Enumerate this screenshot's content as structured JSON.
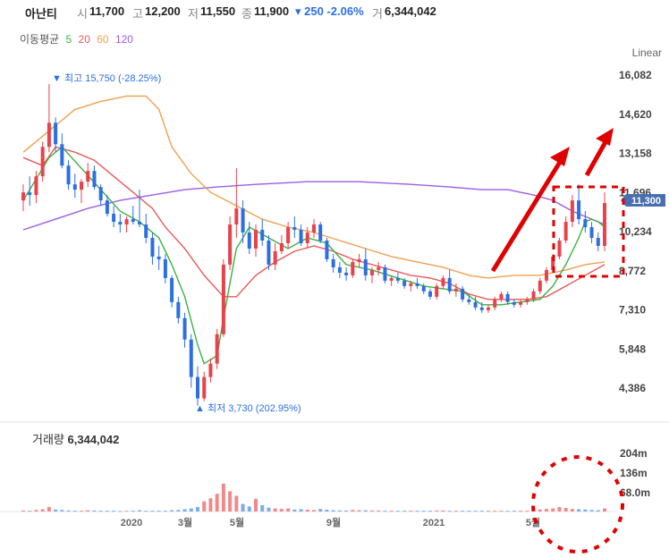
{
  "header": {
    "name": "아난티",
    "open_label": "시",
    "open": "11,700",
    "high_label": "고",
    "high": "12,200",
    "low_label": "저",
    "low": "11,550",
    "close_label": "종",
    "close": "11,900",
    "change": "▾ 250 -2.06%",
    "volume_label": "거",
    "volume": "6,344,042"
  },
  "ma_legend": {
    "label": "이동평균",
    "periods": [
      {
        "text": "5",
        "color": "#3cb043"
      },
      {
        "text": "20",
        "color": "#e85a5a"
      },
      {
        "text": "60",
        "color": "#f0a050"
      },
      {
        "text": "120",
        "color": "#9a5de6"
      }
    ]
  },
  "scale_label": "Linear",
  "annotations": {
    "high": "▼ 최고 15,750 (-28.25%)",
    "low": "▲ 최저 3,730 (202.95%)",
    "current_price": "11,300"
  },
  "volume_panel": {
    "label": "거래량",
    "value": "6,344,042"
  },
  "colors": {
    "up": "#e8424a",
    "down": "#2c6fe0",
    "highlight": "#e00000",
    "ma5": "#3cb043",
    "ma20": "#e85a5a",
    "ma60": "#f0a050",
    "ma120": "#9a5de6"
  },
  "chart_data": {
    "type": "candlestick",
    "y_ticks": [
      "16,082",
      "14,620",
      "13,158",
      "11,696",
      "10,234",
      "8,772",
      "7,310",
      "5,848",
      "4,386"
    ],
    "ylim": [
      3000,
      16500
    ],
    "x_ticks": [
      "2020",
      "3월",
      "5월",
      "9월",
      "2021",
      "5월"
    ],
    "volume_ticks": [
      "204m",
      "136m",
      "68.0m"
    ],
    "volume_ylim": [
      0,
      240
    ],
    "candles": [
      [
        11400,
        12000,
        11000,
        11700
      ],
      [
        11700,
        12300,
        11200,
        11600
      ],
      [
        11600,
        12500,
        11300,
        12300
      ],
      [
        12300,
        13600,
        12100,
        13400
      ],
      [
        13400,
        15750,
        13200,
        14300
      ],
      [
        14300,
        14500,
        13200,
        13500
      ],
      [
        13500,
        13900,
        12600,
        12700
      ],
      [
        12700,
        12900,
        11800,
        12000
      ],
      [
        12000,
        12400,
        11500,
        11800
      ],
      [
        11800,
        12200,
        11300,
        12100
      ],
      [
        12100,
        12800,
        11900,
        12500
      ],
      [
        12500,
        12700,
        11800,
        11900
      ],
      [
        11900,
        12000,
        11200,
        11400
      ],
      [
        11400,
        11600,
        10800,
        10900
      ],
      [
        10900,
        11200,
        10400,
        10600
      ],
      [
        10600,
        10900,
        10200,
        10500
      ],
      [
        10500,
        10800,
        10200,
        10700
      ],
      [
        10700,
        11200,
        10500,
        10600
      ],
      [
        10600,
        11800,
        10400,
        10500
      ],
      [
        10500,
        10900,
        9800,
        10000
      ],
      [
        10000,
        10200,
        9000,
        9300
      ],
      [
        9300,
        9700,
        8800,
        9200
      ],
      [
        9200,
        9400,
        8300,
        8500
      ],
      [
        8500,
        8600,
        7400,
        7600
      ],
      [
        7600,
        7800,
        6800,
        7000
      ],
      [
        7000,
        7200,
        5900,
        6200
      ],
      [
        6200,
        6400,
        4400,
        4800
      ],
      [
        4800,
        5200,
        3730,
        4000
      ],
      [
        4000,
        5000,
        3900,
        4800
      ],
      [
        4800,
        5500,
        4600,
        5300
      ],
      [
        5300,
        6600,
        5100,
        6400
      ],
      [
        6400,
        9200,
        6300,
        9000
      ],
      [
        9000,
        10800,
        8800,
        10500
      ],
      [
        10500,
        12600,
        10000,
        11100
      ],
      [
        11100,
        11400,
        9800,
        10200
      ],
      [
        10200,
        10600,
        9400,
        9600
      ],
      [
        9600,
        10500,
        9300,
        10300
      ],
      [
        10300,
        10700,
        9700,
        9900
      ],
      [
        9900,
        10100,
        8800,
        9000
      ],
      [
        9000,
        9800,
        8800,
        9500
      ],
      [
        9500,
        10100,
        9400,
        9800
      ],
      [
        9800,
        10600,
        9600,
        10400
      ],
      [
        10400,
        10800,
        10000,
        10300
      ],
      [
        10300,
        10500,
        9700,
        9800
      ],
      [
        9800,
        10400,
        9600,
        10200
      ],
      [
        10200,
        10700,
        10000,
        10500
      ],
      [
        10500,
        10600,
        9800,
        9900
      ],
      [
        9900,
        10000,
        9100,
        9200
      ],
      [
        9200,
        9400,
        8700,
        8900
      ],
      [
        8900,
        9100,
        8500,
        8700
      ],
      [
        8700,
        8900,
        8400,
        8600
      ],
      [
        8600,
        9200,
        8500,
        9100
      ],
      [
        9100,
        9400,
        8900,
        9200
      ],
      [
        9200,
        9600,
        8400,
        8600
      ],
      [
        8600,
        8900,
        8300,
        8800
      ],
      [
        8800,
        9100,
        8600,
        8900
      ],
      [
        8900,
        9000,
        8300,
        8400
      ],
      [
        8400,
        8600,
        8200,
        8500
      ],
      [
        8500,
        8700,
        8300,
        8400
      ],
      [
        8400,
        8500,
        8100,
        8200
      ],
      [
        8200,
        8400,
        8000,
        8300
      ],
      [
        8300,
        8500,
        8100,
        8200
      ],
      [
        8200,
        8300,
        7900,
        8000
      ],
      [
        8000,
        8100,
        7700,
        7800
      ],
      [
        7800,
        8300,
        7700,
        8200
      ],
      [
        8200,
        8600,
        8100,
        8500
      ],
      [
        8500,
        8800,
        7900,
        8000
      ],
      [
        8000,
        8300,
        7800,
        8100
      ],
      [
        8100,
        8200,
        7600,
        7700
      ],
      [
        7700,
        7900,
        7500,
        7600
      ],
      [
        7600,
        7800,
        7300,
        7400
      ],
      [
        7400,
        7600,
        7200,
        7300
      ],
      [
        7300,
        7500,
        7200,
        7400
      ],
      [
        7400,
        7800,
        7300,
        7700
      ],
      [
        7700,
        8000,
        7600,
        7900
      ],
      [
        7900,
        8000,
        7500,
        7600
      ],
      [
        7600,
        7700,
        7400,
        7500
      ],
      [
        7500,
        7700,
        7400,
        7600
      ],
      [
        7600,
        7800,
        7500,
        7700
      ],
      [
        7700,
        8100,
        7600,
        8000
      ],
      [
        8000,
        8500,
        7900,
        8400
      ],
      [
        8400,
        8900,
        8300,
        8800
      ],
      [
        8800,
        9400,
        8700,
        9300
      ],
      [
        9300,
        10000,
        9200,
        9900
      ],
      [
        9900,
        10800,
        9800,
        10600
      ],
      [
        10600,
        11600,
        10400,
        11400
      ],
      [
        11400,
        12000,
        10500,
        10700
      ],
      [
        10700,
        11000,
        10200,
        10400
      ],
      [
        10400,
        10600,
        9800,
        10000
      ],
      [
        10000,
        10200,
        9500,
        9700
      ],
      [
        9700,
        11700,
        9500,
        11300
      ]
    ],
    "volumes": [
      4,
      3,
      6,
      9,
      18,
      8,
      6,
      4,
      3,
      3,
      5,
      4,
      3,
      3,
      3,
      2,
      3,
      3,
      5,
      3,
      3,
      3,
      3,
      5,
      6,
      9,
      12,
      18,
      40,
      52,
      70,
      110,
      80,
      62,
      30,
      20,
      50,
      25,
      15,
      12,
      10,
      12,
      8,
      9,
      7,
      6,
      10,
      7,
      5,
      4,
      4,
      6,
      5,
      5,
      4,
      4,
      3,
      3,
      3,
      3,
      3,
      3,
      3,
      3,
      4,
      4,
      3,
      3,
      3,
      3,
      3,
      3,
      3,
      3,
      3,
      3,
      3,
      3,
      3,
      3,
      8,
      10,
      12,
      18,
      14,
      10,
      9,
      8,
      6,
      5,
      12
    ],
    "ma5": [
      [
        0,
        11400
      ],
      [
        4,
        13000
      ],
      [
        6,
        13400
      ],
      [
        9,
        12600
      ],
      [
        12,
        11800
      ],
      [
        15,
        11000
      ],
      [
        18,
        10600
      ],
      [
        21,
        10000
      ],
      [
        23,
        9000
      ],
      [
        25,
        7800
      ],
      [
        27,
        6000
      ],
      [
        28,
        5300
      ],
      [
        30,
        5600
      ],
      [
        31,
        7000
      ],
      [
        33,
        9600
      ],
      [
        35,
        10400
      ],
      [
        38,
        10000
      ],
      [
        41,
        9600
      ],
      [
        44,
        10000
      ],
      [
        47,
        9800
      ],
      [
        50,
        9000
      ],
      [
        54,
        8800
      ],
      [
        58,
        8500
      ],
      [
        62,
        8200
      ],
      [
        65,
        8100
      ],
      [
        68,
        8000
      ],
      [
        71,
        7500
      ],
      [
        74,
        7500
      ],
      [
        77,
        7600
      ],
      [
        80,
        7700
      ],
      [
        82,
        8200
      ],
      [
        84,
        9000
      ],
      [
        86,
        10000
      ],
      [
        87,
        10600
      ],
      [
        88,
        10700
      ],
      [
        89,
        10600
      ],
      [
        90,
        10400
      ]
    ],
    "ma20": [
      [
        0,
        13000
      ],
      [
        3,
        12700
      ],
      [
        5,
        13400
      ],
      [
        8,
        13200
      ],
      [
        11,
        12900
      ],
      [
        14,
        12300
      ],
      [
        17,
        11700
      ],
      [
        20,
        11100
      ],
      [
        22,
        10400
      ],
      [
        25,
        9600
      ],
      [
        28,
        8600
      ],
      [
        31,
        7800
      ],
      [
        33,
        7800
      ],
      [
        36,
        8600
      ],
      [
        39,
        9100
      ],
      [
        42,
        9500
      ],
      [
        45,
        9700
      ],
      [
        48,
        9500
      ],
      [
        51,
        9200
      ],
      [
        54,
        9000
      ],
      [
        57,
        8800
      ],
      [
        60,
        8600
      ],
      [
        63,
        8500
      ],
      [
        66,
        8300
      ],
      [
        69,
        7900
      ],
      [
        72,
        7700
      ],
      [
        75,
        7700
      ],
      [
        78,
        7700
      ],
      [
        81,
        7800
      ],
      [
        84,
        8200
      ],
      [
        87,
        8600
      ],
      [
        90,
        9000
      ]
    ],
    "ma60": [
      [
        0,
        13200
      ],
      [
        4,
        14000
      ],
      [
        8,
        14800
      ],
      [
        12,
        15100
      ],
      [
        16,
        15300
      ],
      [
        19,
        15300
      ],
      [
        21,
        14800
      ],
      [
        23,
        13400
      ],
      [
        26,
        12400
      ],
      [
        29,
        11700
      ],
      [
        33,
        11200
      ],
      [
        37,
        10700
      ],
      [
        41,
        10400
      ],
      [
        45,
        10200
      ],
      [
        49,
        9900
      ],
      [
        53,
        9600
      ],
      [
        57,
        9300
      ],
      [
        61,
        9100
      ],
      [
        65,
        8900
      ],
      [
        69,
        8600
      ],
      [
        72,
        8500
      ],
      [
        76,
        8600
      ],
      [
        80,
        8600
      ],
      [
        84,
        8800
      ],
      [
        87,
        9000
      ],
      [
        90,
        9100
      ]
    ],
    "ma120": [
      [
        0,
        10300
      ],
      [
        5,
        10700
      ],
      [
        10,
        11100
      ],
      [
        15,
        11400
      ],
      [
        20,
        11600
      ],
      [
        25,
        11800
      ],
      [
        30,
        11900
      ],
      [
        36,
        12000
      ],
      [
        44,
        12100
      ],
      [
        52,
        12100
      ],
      [
        60,
        12000
      ],
      [
        66,
        11900
      ],
      [
        71,
        11800
      ],
      [
        75,
        11800
      ],
      [
        79,
        11600
      ],
      [
        82,
        11400
      ],
      [
        85,
        11000
      ],
      [
        88,
        10700
      ],
      [
        90,
        10500
      ]
    ]
  }
}
